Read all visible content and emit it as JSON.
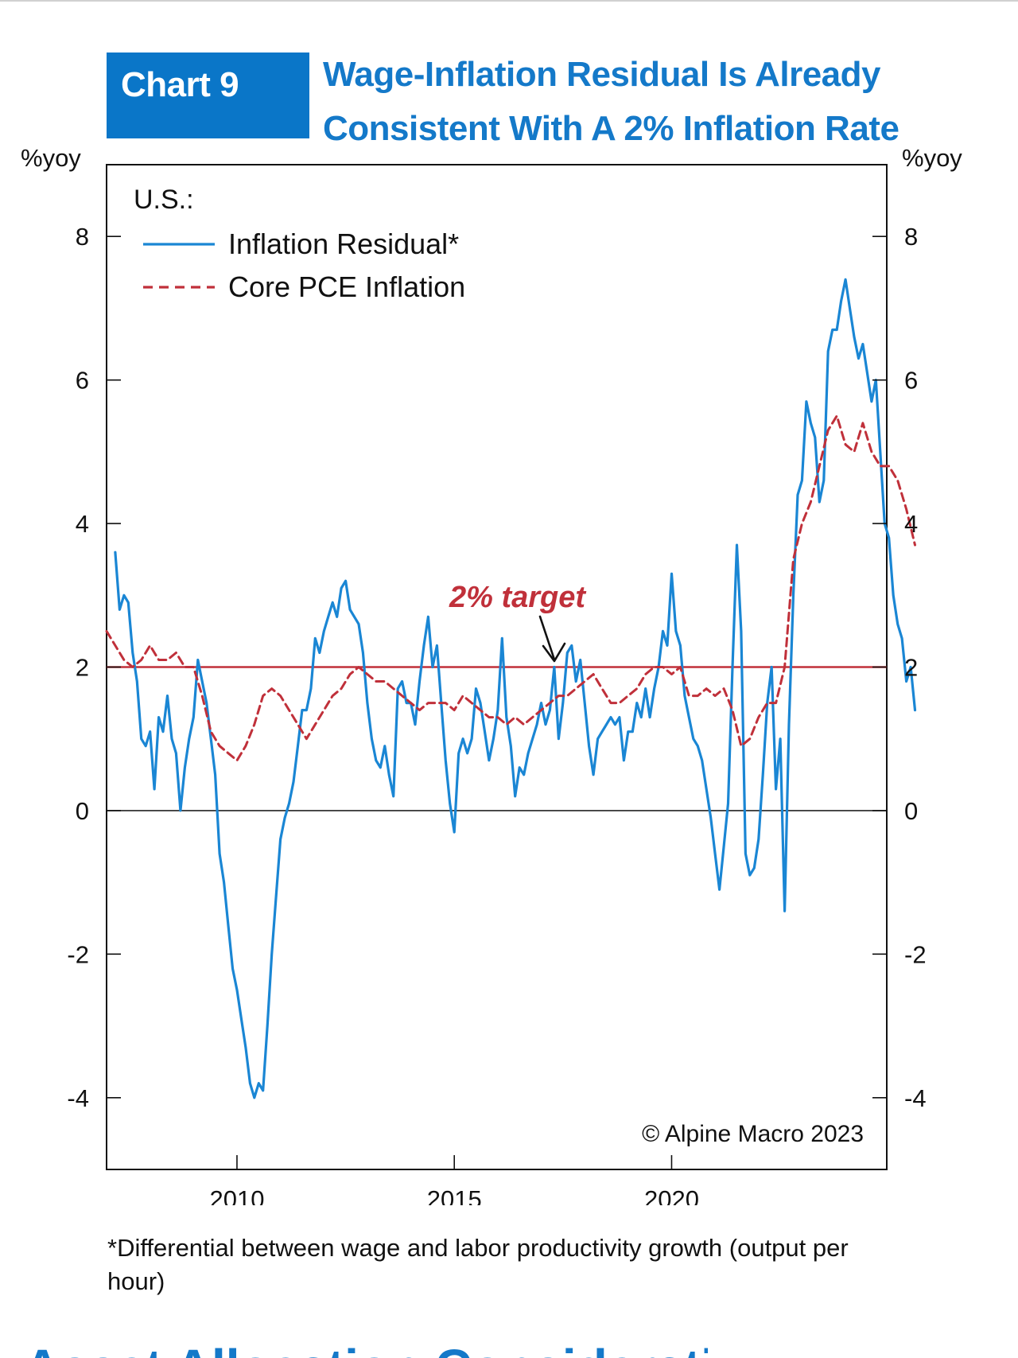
{
  "badge": {
    "label": "Chart 9"
  },
  "title": {
    "line1": "Wage-Inflation Residual Is Already",
    "line2": "Consistent With A 2% Inflation Rate"
  },
  "footnote": "*Differential between wage and labor productivity growth (output per hour)",
  "bottom_fragment": "Asset Allocation Considerations",
  "colors": {
    "accent": "#0a76c8",
    "residual": "#1a86d4",
    "core_pce": "#c0303a",
    "target_line": "#c0303a"
  },
  "chart_data": {
    "type": "line",
    "title": "Wage-Inflation Residual Is Already Consistent With A 2% Inflation Rate",
    "ylabel_left": "%yoy",
    "ylabel_right": "%yoy",
    "ylim": [
      -5,
      9
    ],
    "xlim": [
      2007.0,
      2024.95
    ],
    "yticks": [
      -4,
      -2,
      0,
      2,
      4,
      6,
      8
    ],
    "ytick_labels": [
      "-4",
      "-2",
      "0",
      "2",
      "4",
      "6",
      "8"
    ],
    "xticks": [
      2010,
      2015,
      2020
    ],
    "xtick_labels": [
      "2010",
      "2015",
      "2020"
    ],
    "legend": {
      "title": "U.S.:",
      "placement": "top-left"
    },
    "grid": false,
    "reference_line": {
      "y": 2,
      "label": "2% target"
    },
    "source": "© Alpine Macro 2023",
    "series": [
      {
        "name": "Inflation Residual*",
        "style": "solid",
        "color": "#1a86d4",
        "points": [
          [
            2007.2,
            3.6
          ],
          [
            2007.3,
            2.8
          ],
          [
            2007.4,
            3.0
          ],
          [
            2007.5,
            2.9
          ],
          [
            2007.6,
            2.2
          ],
          [
            2007.7,
            1.8
          ],
          [
            2007.8,
            1.0
          ],
          [
            2007.9,
            0.9
          ],
          [
            2008.0,
            1.1
          ],
          [
            2008.1,
            0.3
          ],
          [
            2008.2,
            1.3
          ],
          [
            2008.3,
            1.1
          ],
          [
            2008.4,
            1.6
          ],
          [
            2008.5,
            1.0
          ],
          [
            2008.6,
            0.8
          ],
          [
            2008.7,
            0.0
          ],
          [
            2008.8,
            0.6
          ],
          [
            2008.9,
            1.0
          ],
          [
            2009.0,
            1.3
          ],
          [
            2009.1,
            2.1
          ],
          [
            2009.2,
            1.8
          ],
          [
            2009.3,
            1.5
          ],
          [
            2009.4,
            1.0
          ],
          [
            2009.5,
            0.5
          ],
          [
            2009.6,
            -0.6
          ],
          [
            2009.7,
            -1.0
          ],
          [
            2009.8,
            -1.6
          ],
          [
            2009.9,
            -2.2
          ],
          [
            2010.0,
            -2.5
          ],
          [
            2010.1,
            -2.9
          ],
          [
            2010.2,
            -3.3
          ],
          [
            2010.3,
            -3.8
          ],
          [
            2010.4,
            -4.0
          ],
          [
            2010.5,
            -3.8
          ],
          [
            2010.6,
            -3.9
          ],
          [
            2010.7,
            -3.0
          ],
          [
            2010.8,
            -2.0
          ],
          [
            2010.9,
            -1.2
          ],
          [
            2011.0,
            -0.4
          ],
          [
            2011.1,
            -0.1
          ],
          [
            2011.2,
            0.1
          ],
          [
            2011.3,
            0.4
          ],
          [
            2011.4,
            0.9
          ],
          [
            2011.5,
            1.4
          ],
          [
            2011.6,
            1.4
          ],
          [
            2011.7,
            1.7
          ],
          [
            2011.8,
            2.4
          ],
          [
            2011.9,
            2.2
          ],
          [
            2012.0,
            2.5
          ],
          [
            2012.1,
            2.7
          ],
          [
            2012.2,
            2.9
          ],
          [
            2012.3,
            2.7
          ],
          [
            2012.4,
            3.1
          ],
          [
            2012.5,
            3.2
          ],
          [
            2012.6,
            2.8
          ],
          [
            2012.7,
            2.7
          ],
          [
            2012.8,
            2.6
          ],
          [
            2012.9,
            2.2
          ],
          [
            2013.0,
            1.5
          ],
          [
            2013.1,
            1.0
          ],
          [
            2013.2,
            0.7
          ],
          [
            2013.3,
            0.6
          ],
          [
            2013.4,
            0.9
          ],
          [
            2013.5,
            0.5
          ],
          [
            2013.6,
            0.2
          ],
          [
            2013.7,
            1.7
          ],
          [
            2013.8,
            1.8
          ],
          [
            2013.9,
            1.5
          ],
          [
            2014.0,
            1.5
          ],
          [
            2014.1,
            1.2
          ],
          [
            2014.2,
            1.8
          ],
          [
            2014.3,
            2.3
          ],
          [
            2014.4,
            2.7
          ],
          [
            2014.5,
            2.0
          ],
          [
            2014.6,
            2.3
          ],
          [
            2014.7,
            1.5
          ],
          [
            2014.8,
            0.7
          ],
          [
            2014.9,
            0.1
          ],
          [
            2015.0,
            -0.3
          ],
          [
            2015.1,
            0.8
          ],
          [
            2015.2,
            1.0
          ],
          [
            2015.3,
            0.8
          ],
          [
            2015.4,
            1.0
          ],
          [
            2015.5,
            1.7
          ],
          [
            2015.6,
            1.5
          ],
          [
            2015.7,
            1.1
          ],
          [
            2015.8,
            0.7
          ],
          [
            2015.9,
            1.0
          ],
          [
            2016.0,
            1.4
          ],
          [
            2016.1,
            2.4
          ],
          [
            2016.2,
            1.3
          ],
          [
            2016.3,
            0.9
          ],
          [
            2016.4,
            0.2
          ],
          [
            2016.5,
            0.6
          ],
          [
            2016.6,
            0.5
          ],
          [
            2016.7,
            0.8
          ],
          [
            2016.8,
            1.0
          ],
          [
            2016.9,
            1.2
          ],
          [
            2017.0,
            1.5
          ],
          [
            2017.1,
            1.2
          ],
          [
            2017.2,
            1.4
          ],
          [
            2017.3,
            2.0
          ],
          [
            2017.4,
            1.0
          ],
          [
            2017.5,
            1.5
          ],
          [
            2017.6,
            2.2
          ],
          [
            2017.7,
            2.3
          ],
          [
            2017.8,
            1.8
          ],
          [
            2017.9,
            2.1
          ],
          [
            2018.0,
            1.5
          ],
          [
            2018.1,
            0.9
          ],
          [
            2018.2,
            0.5
          ],
          [
            2018.3,
            1.0
          ],
          [
            2018.4,
            1.1
          ],
          [
            2018.5,
            1.2
          ],
          [
            2018.6,
            1.3
          ],
          [
            2018.7,
            1.2
          ],
          [
            2018.8,
            1.3
          ],
          [
            2018.9,
            0.7
          ],
          [
            2019.0,
            1.1
          ],
          [
            2019.1,
            1.1
          ],
          [
            2019.2,
            1.5
          ],
          [
            2019.3,
            1.3
          ],
          [
            2019.4,
            1.7
          ],
          [
            2019.5,
            1.3
          ],
          [
            2019.6,
            1.7
          ],
          [
            2019.7,
            2.0
          ],
          [
            2019.8,
            2.5
          ],
          [
            2019.9,
            2.3
          ],
          [
            2020.0,
            3.3
          ],
          [
            2020.1,
            2.5
          ],
          [
            2020.2,
            2.3
          ],
          [
            2020.3,
            1.6
          ],
          [
            2020.4,
            1.3
          ],
          [
            2020.5,
            1.0
          ],
          [
            2020.6,
            0.9
          ],
          [
            2020.7,
            0.7
          ],
          [
            2020.8,
            0.3
          ],
          [
            2020.9,
            -0.1
          ],
          [
            2021.0,
            -0.6
          ],
          [
            2021.1,
            -1.1
          ],
          [
            2021.2,
            -0.5
          ],
          [
            2021.3,
            0.1
          ],
          [
            2021.4,
            2.0
          ],
          [
            2021.5,
            3.7
          ],
          [
            2021.6,
            2.5
          ],
          [
            2021.7,
            -0.6
          ],
          [
            2021.8,
            -0.9
          ],
          [
            2021.9,
            -0.8
          ],
          [
            2022.0,
            -0.4
          ],
          [
            2022.1,
            0.5
          ],
          [
            2022.2,
            1.5
          ],
          [
            2022.3,
            2.0
          ],
          [
            2022.4,
            0.3
          ],
          [
            2022.5,
            1.0
          ],
          [
            2022.6,
            -1.4
          ],
          [
            2022.7,
            1.2
          ],
          [
            2022.8,
            3.0
          ],
          [
            2022.9,
            4.4
          ],
          [
            2023.0,
            4.6
          ],
          [
            2023.1,
            5.7
          ],
          [
            2023.2,
            5.4
          ],
          [
            2023.3,
            5.2
          ],
          [
            2023.4,
            4.3
          ],
          [
            2023.5,
            4.6
          ],
          [
            2023.6,
            6.4
          ],
          [
            2023.7,
            6.7
          ],
          [
            2023.8,
            6.7
          ],
          [
            2023.9,
            7.1
          ],
          [
            2024.0,
            7.4
          ],
          [
            2024.1,
            7.0
          ],
          [
            2024.2,
            6.6
          ],
          [
            2024.3,
            6.3
          ],
          [
            2024.4,
            6.5
          ],
          [
            2024.5,
            6.1
          ],
          [
            2024.6,
            5.7
          ],
          [
            2024.7,
            6.0
          ],
          [
            2024.8,
            5.0
          ],
          [
            2024.9,
            4.0
          ],
          [
            2025.0,
            3.8
          ],
          [
            2025.1,
            3.0
          ],
          [
            2025.2,
            2.6
          ],
          [
            2025.3,
            2.4
          ],
          [
            2025.4,
            1.8
          ],
          [
            2025.5,
            2.0
          ],
          [
            2025.6,
            1.4
          ]
        ]
      },
      {
        "name": "Core PCE Inflation",
        "style": "dashed",
        "color": "#c0303a",
        "points": [
          [
            2007.0,
            2.5
          ],
          [
            2007.2,
            2.3
          ],
          [
            2007.4,
            2.1
          ],
          [
            2007.6,
            2.0
          ],
          [
            2007.8,
            2.1
          ],
          [
            2008.0,
            2.3
          ],
          [
            2008.2,
            2.1
          ],
          [
            2008.4,
            2.1
          ],
          [
            2008.6,
            2.2
          ],
          [
            2008.8,
            2.0
          ],
          [
            2009.0,
            2.0
          ],
          [
            2009.2,
            1.6
          ],
          [
            2009.4,
            1.1
          ],
          [
            2009.6,
            0.9
          ],
          [
            2009.8,
            0.8
          ],
          [
            2010.0,
            0.7
          ],
          [
            2010.2,
            0.9
          ],
          [
            2010.4,
            1.2
          ],
          [
            2010.6,
            1.6
          ],
          [
            2010.8,
            1.7
          ],
          [
            2011.0,
            1.6
          ],
          [
            2011.2,
            1.4
          ],
          [
            2011.4,
            1.2
          ],
          [
            2011.6,
            1.0
          ],
          [
            2011.8,
            1.2
          ],
          [
            2012.0,
            1.4
          ],
          [
            2012.2,
            1.6
          ],
          [
            2012.4,
            1.7
          ],
          [
            2012.6,
            1.9
          ],
          [
            2012.8,
            2.0
          ],
          [
            2013.0,
            1.9
          ],
          [
            2013.2,
            1.8
          ],
          [
            2013.4,
            1.8
          ],
          [
            2013.6,
            1.7
          ],
          [
            2013.8,
            1.6
          ],
          [
            2014.0,
            1.5
          ],
          [
            2014.2,
            1.4
          ],
          [
            2014.4,
            1.5
          ],
          [
            2014.6,
            1.5
          ],
          [
            2014.8,
            1.5
          ],
          [
            2015.0,
            1.4
          ],
          [
            2015.2,
            1.6
          ],
          [
            2015.4,
            1.5
          ],
          [
            2015.6,
            1.4
          ],
          [
            2015.8,
            1.3
          ],
          [
            2016.0,
            1.3
          ],
          [
            2016.2,
            1.2
          ],
          [
            2016.4,
            1.3
          ],
          [
            2016.6,
            1.2
          ],
          [
            2016.8,
            1.3
          ],
          [
            2017.0,
            1.4
          ],
          [
            2017.2,
            1.5
          ],
          [
            2017.4,
            1.6
          ],
          [
            2017.6,
            1.6
          ],
          [
            2017.8,
            1.7
          ],
          [
            2018.0,
            1.8
          ],
          [
            2018.2,
            1.9
          ],
          [
            2018.4,
            1.7
          ],
          [
            2018.6,
            1.5
          ],
          [
            2018.8,
            1.5
          ],
          [
            2019.0,
            1.6
          ],
          [
            2019.2,
            1.7
          ],
          [
            2019.4,
            1.9
          ],
          [
            2019.6,
            2.0
          ],
          [
            2019.8,
            2.0
          ],
          [
            2020.0,
            1.9
          ],
          [
            2020.2,
            2.0
          ],
          [
            2020.4,
            1.6
          ],
          [
            2020.6,
            1.6
          ],
          [
            2020.8,
            1.7
          ],
          [
            2021.0,
            1.6
          ],
          [
            2021.2,
            1.7
          ],
          [
            2021.4,
            1.4
          ],
          [
            2021.6,
            0.9
          ],
          [
            2021.8,
            1.0
          ],
          [
            2022.0,
            1.3
          ],
          [
            2022.2,
            1.5
          ],
          [
            2022.4,
            1.5
          ],
          [
            2022.6,
            2.0
          ],
          [
            2022.8,
            3.5
          ],
          [
            2023.0,
            4.0
          ],
          [
            2023.2,
            4.3
          ],
          [
            2023.4,
            4.8
          ],
          [
            2023.6,
            5.3
          ],
          [
            2023.8,
            5.5
          ],
          [
            2024.0,
            5.1
          ],
          [
            2024.2,
            5.0
          ],
          [
            2024.4,
            5.4
          ],
          [
            2024.6,
            5.0
          ],
          [
            2024.8,
            4.8
          ],
          [
            2025.0,
            4.8
          ],
          [
            2025.2,
            4.6
          ],
          [
            2025.4,
            4.2
          ],
          [
            2025.6,
            3.7
          ]
        ]
      }
    ]
  }
}
